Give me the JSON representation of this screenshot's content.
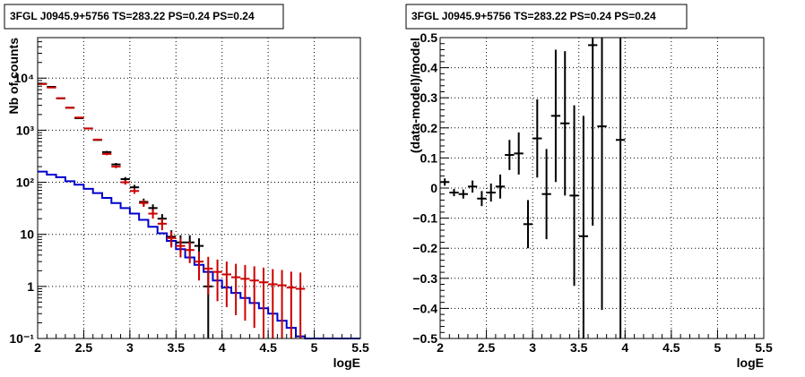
{
  "chart_data": [
    {
      "type": "scatter",
      "title": "3FGL J0945.9+5756 TS=283.22 PS=0.24 PS=0.24",
      "xlabel": "logE",
      "ylabel": "Nb of counts",
      "xlim": [
        2,
        5.5
      ],
      "ylim": [
        0.1,
        60000
      ],
      "yscale": "log",
      "grid": true,
      "x_ticks": [
        "2",
        "2.5",
        "3",
        "3.5",
        "4",
        "4.5",
        "5",
        "5.5"
      ],
      "y_ticks": [
        "10⁻¹",
        "1",
        "10",
        "10²",
        "10³",
        "10⁴"
      ],
      "colors": {
        "data": "#000000",
        "model": "#cc0000",
        "background": "#0000cc"
      },
      "series": [
        {
          "values_desc": "observed counts with error bars",
          "x": [
            2.05,
            2.15,
            2.25,
            2.35,
            2.45,
            2.55,
            2.65,
            2.75,
            2.85,
            2.95,
            3.05,
            3.15,
            3.25,
            3.35,
            3.45,
            3.55,
            3.65,
            3.75,
            3.85
          ],
          "y": [
            7800,
            6800,
            4100,
            2700,
            1700,
            1080,
            650,
            380,
            220,
            115,
            80,
            42,
            32,
            20,
            9,
            7,
            7,
            6,
            1
          ],
          "yerr": [
            88,
            82,
            64,
            52,
            41,
            33,
            25,
            19,
            15,
            11,
            9,
            6.5,
            5.7,
            4.5,
            3,
            2.6,
            2.6,
            2.4,
            1
          ]
        },
        {
          "values_desc": "model counts with error bars",
          "x": [
            2.05,
            2.15,
            2.25,
            2.35,
            2.45,
            2.55,
            2.65,
            2.75,
            2.85,
            2.95,
            3.05,
            3.15,
            3.25,
            3.35,
            3.45,
            3.55,
            3.65,
            3.75,
            3.85,
            3.95,
            4.05,
            4.15,
            4.25,
            4.35,
            4.45,
            4.55,
            4.65,
            4.75,
            4.85
          ],
          "y": [
            7700,
            6600,
            4100,
            2700,
            1750,
            1080,
            660,
            350,
            200,
            100,
            68,
            40,
            25,
            16,
            8.5,
            6,
            5,
            3,
            2.2,
            1.9,
            1.7,
            1.5,
            1.4,
            1.3,
            1.2,
            1.1,
            1.05,
            0.95,
            0.9
          ],
          "yerr": [
            88,
            81,
            64,
            52,
            42,
            33,
            26,
            19,
            14,
            10,
            8,
            6.3,
            5,
            4,
            2.9,
            2.4,
            2.2,
            1.7,
            1.5,
            1.38,
            1.3,
            1.22,
            1.18,
            1.14,
            1.1,
            1.05,
            1.02,
            0.97,
            0.95
          ]
        },
        {
          "values_desc": "background step histogram",
          "x": [
            2.0,
            2.1,
            2.2,
            2.3,
            2.4,
            2.5,
            2.6,
            2.7,
            2.8,
            2.9,
            3.0,
            3.1,
            3.2,
            3.3,
            3.4,
            3.5,
            3.6,
            3.7,
            3.8,
            3.9,
            4.0,
            4.1,
            4.2,
            4.3,
            4.4,
            4.5,
            4.6,
            4.7,
            4.8,
            4.9,
            5.0,
            5.1,
            5.2,
            5.3,
            5.4
          ],
          "y": [
            160,
            140,
            125,
            105,
            90,
            75,
            62,
            50,
            40,
            32,
            25,
            19,
            14,
            10.5,
            7.5,
            5.2,
            3.6,
            2.6,
            1.9,
            1.3,
            0.95,
            0.75,
            0.6,
            0.48,
            0.38,
            0.3,
            0.22,
            0.16,
            0.11,
            0.1,
            0.1,
            0.1,
            0.1,
            0.1,
            0.1
          ]
        }
      ]
    },
    {
      "type": "scatter",
      "title": "3FGL J0945.9+5756 TS=283.22 PS=0.24 PS=0.24",
      "xlabel": "logE",
      "ylabel": "(data-model)/model",
      "xlim": [
        2,
        5.5
      ],
      "ylim": [
        -0.5,
        0.5
      ],
      "grid": true,
      "x_ticks": [
        "2",
        "2.5",
        "3",
        "3.5",
        "4",
        "4.5",
        "5",
        "5.5"
      ],
      "y_ticks": [
        "−0.5",
        "−0.4",
        "−0.3",
        "−0.2",
        "−0.1",
        "0",
        "0.1",
        "0.2",
        "0.3",
        "0.4",
        "0.5"
      ],
      "series": [
        {
          "values_desc": "residuals with error bars",
          "x": [
            2.05,
            2.15,
            2.25,
            2.35,
            2.45,
            2.55,
            2.65,
            2.75,
            2.85,
            2.95,
            3.05,
            3.15,
            3.25,
            3.35,
            3.45,
            3.55,
            3.65,
            3.75,
            3.95
          ],
          "y": [
            0.02,
            -0.015,
            -0.02,
            0.005,
            -0.035,
            -0.015,
            0.005,
            0.11,
            0.115,
            -0.12,
            0.165,
            -0.02,
            0.24,
            0.215,
            -0.025,
            -0.16,
            0.475,
            0.205,
            0.16
          ],
          "yerr": [
            0.012,
            0.012,
            0.015,
            0.02,
            0.025,
            0.03,
            0.04,
            0.05,
            0.07,
            0.08,
            0.13,
            0.15,
            0.22,
            0.24,
            0.3,
            0.4,
            0.6,
            0.61,
            0.9
          ]
        }
      ]
    }
  ]
}
